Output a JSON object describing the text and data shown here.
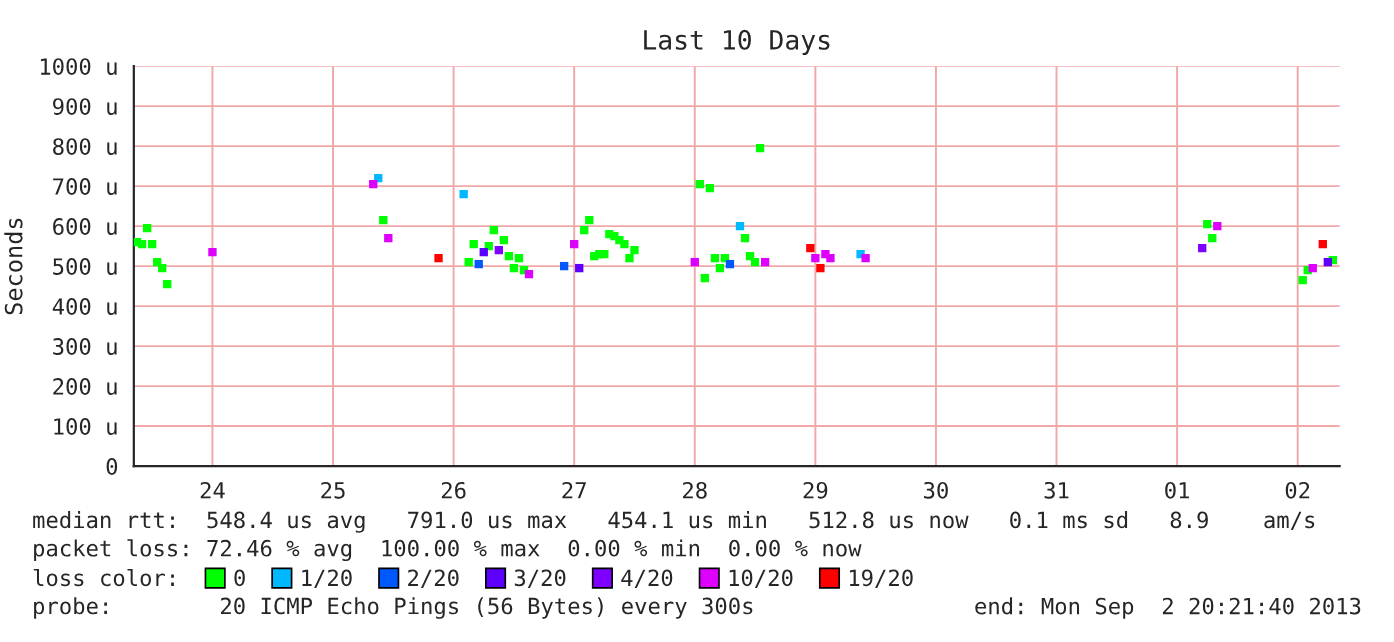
{
  "chart_data": {
    "type": "scatter",
    "title": "Last 10 Days",
    "ylabel": "Seconds",
    "xlim": [
      "2013-08-23T20:21",
      "2013-09-02T20:21"
    ],
    "xticks": [
      {
        "value": "2013-08-24T12:00",
        "label": "24"
      },
      {
        "value": "2013-08-25T12:00",
        "label": "25"
      },
      {
        "value": "2013-08-26T12:00",
        "label": "26"
      },
      {
        "value": "2013-08-27T12:00",
        "label": "27"
      },
      {
        "value": "2013-08-28T12:00",
        "label": "28"
      },
      {
        "value": "2013-08-29T12:00",
        "label": "29"
      },
      {
        "value": "2013-08-30T12:00",
        "label": "30"
      },
      {
        "value": "2013-08-31T12:00",
        "label": "31"
      },
      {
        "value": "2013-09-01T12:00",
        "label": "01"
      },
      {
        "value": "2013-09-02T12:00",
        "label": "02"
      }
    ],
    "ylim": [
      0,
      1000
    ],
    "yticks": [
      0,
      {
        "value": 100,
        "label": "100 u"
      },
      {
        "value": 200,
        "label": "200 u"
      },
      {
        "value": 300,
        "label": "300 u"
      },
      {
        "value": 400,
        "label": "400 u"
      },
      {
        "value": 500,
        "label": "500 u"
      },
      {
        "value": 600,
        "label": "600 u"
      },
      {
        "value": 700,
        "label": "700 u"
      },
      {
        "value": 800,
        "label": "800 u"
      },
      {
        "value": 900,
        "label": "900 u"
      },
      {
        "value": 1000,
        "label": "1000 u"
      }
    ],
    "grid": true,
    "marker": "square",
    "legend": "bottom",
    "legend_title": "loss color:",
    "series": [
      {
        "name": "0",
        "color": "#00ff00",
        "x": [
          "2013-08-23T21:00",
          "2013-08-23T22:00",
          "2013-08-23T23:00",
          "2013-08-24T00:00",
          "2013-08-24T01:00",
          "2013-08-24T02:00",
          "2013-08-24T03:00",
          "2013-08-25T22:00",
          "2013-08-26T15:00",
          "2013-08-26T16:00",
          "2013-08-26T19:00",
          "2013-08-26T20:00",
          "2013-08-26T22:00",
          "2013-08-26T23:00",
          "2013-08-27T00:00",
          "2013-08-27T01:00",
          "2013-08-27T02:00",
          "2013-08-27T14:00",
          "2013-08-27T15:00",
          "2013-08-27T16:00",
          "2013-08-27T17:00",
          "2013-08-27T18:00",
          "2013-08-27T19:00",
          "2013-08-27T20:00",
          "2013-08-27T21:00",
          "2013-08-27T22:00",
          "2013-08-27T23:00",
          "2013-08-28T00:00",
          "2013-08-28T13:00",
          "2013-08-28T14:00",
          "2013-08-28T15:00",
          "2013-08-28T16:00",
          "2013-08-28T17:00",
          "2013-08-28T18:00",
          "2013-08-28T22:00",
          "2013-08-28T23:00",
          "2013-08-29T00:00",
          "2013-08-29T01:00",
          "2013-09-01T18:00",
          "2013-09-01T19:00",
          "2013-09-02T13:00",
          "2013-09-02T14:00",
          "2013-09-02T19:00"
        ],
        "values": [
          560,
          555,
          595,
          555,
          510,
          495,
          455,
          615,
          510,
          555,
          550,
          590,
          565,
          525,
          495,
          520,
          490,
          590,
          615,
          525,
          530,
          530,
          580,
          575,
          565,
          555,
          520,
          540,
          705,
          470,
          695,
          520,
          495,
          520,
          570,
          525,
          510,
          795,
          605,
          570,
          465,
          490,
          515
        ]
      },
      {
        "name": "1/20",
        "color": "#00b8ff",
        "x": [
          "2013-08-25T21:00",
          "2013-08-26T14:00",
          "2013-08-28T21:00",
          "2013-08-29T21:00"
        ],
        "values": [
          720,
          680,
          600,
          530
        ]
      },
      {
        "name": "2/20",
        "color": "#0059ff",
        "x": [
          "2013-08-26T17:00",
          "2013-08-27T10:00",
          "2013-08-28T19:00"
        ],
        "values": [
          505,
          500,
          505
        ]
      },
      {
        "name": "3/20",
        "color": "#5e00ff",
        "x": [
          "2013-08-26T18:00",
          "2013-08-27T13:00",
          "2013-09-02T18:00"
        ],
        "values": [
          535,
          495,
          510
        ]
      },
      {
        "name": "4/20",
        "color": "#7e00ff",
        "x": [
          "2013-08-26T21:00",
          "2013-09-01T17:00"
        ],
        "values": [
          540,
          545
        ]
      },
      {
        "name": "10/20",
        "color": "#dd00ff",
        "x": [
          "2013-08-24T12:00",
          "2013-08-25T20:00",
          "2013-08-25T23:00",
          "2013-08-27T03:00",
          "2013-08-27T12:00",
          "2013-08-28T12:00",
          "2013-08-29T02:00",
          "2013-08-29T12:00",
          "2013-08-29T14:00",
          "2013-08-29T15:00",
          "2013-08-29T22:00",
          "2013-09-01T20:00",
          "2013-09-02T15:00"
        ],
        "values": [
          535,
          705,
          570,
          480,
          555,
          510,
          510,
          520,
          530,
          520,
          520,
          600,
          495
        ]
      },
      {
        "name": "19/20",
        "color": "#ff0000",
        "x": [
          "2013-08-26T09:00",
          "2013-08-29T11:00",
          "2013-08-29T13:00",
          "2013-09-02T17:00"
        ],
        "values": [
          520,
          545,
          495,
          555
        ]
      }
    ],
    "annotations": [
      "median rtt:  548.4 us avg   791.0 us max   454.1 us min   512.8 us now   0.1 ms sd   8.9    am/s",
      "packet loss: 72.46 % avg  100.00 % max  0.00 % min  0.00 % now",
      "probe:        20 ICMP Echo Pings (56 Bytes) every 300s",
      "end: Mon Sep  2 20:21:40 2013"
    ]
  }
}
